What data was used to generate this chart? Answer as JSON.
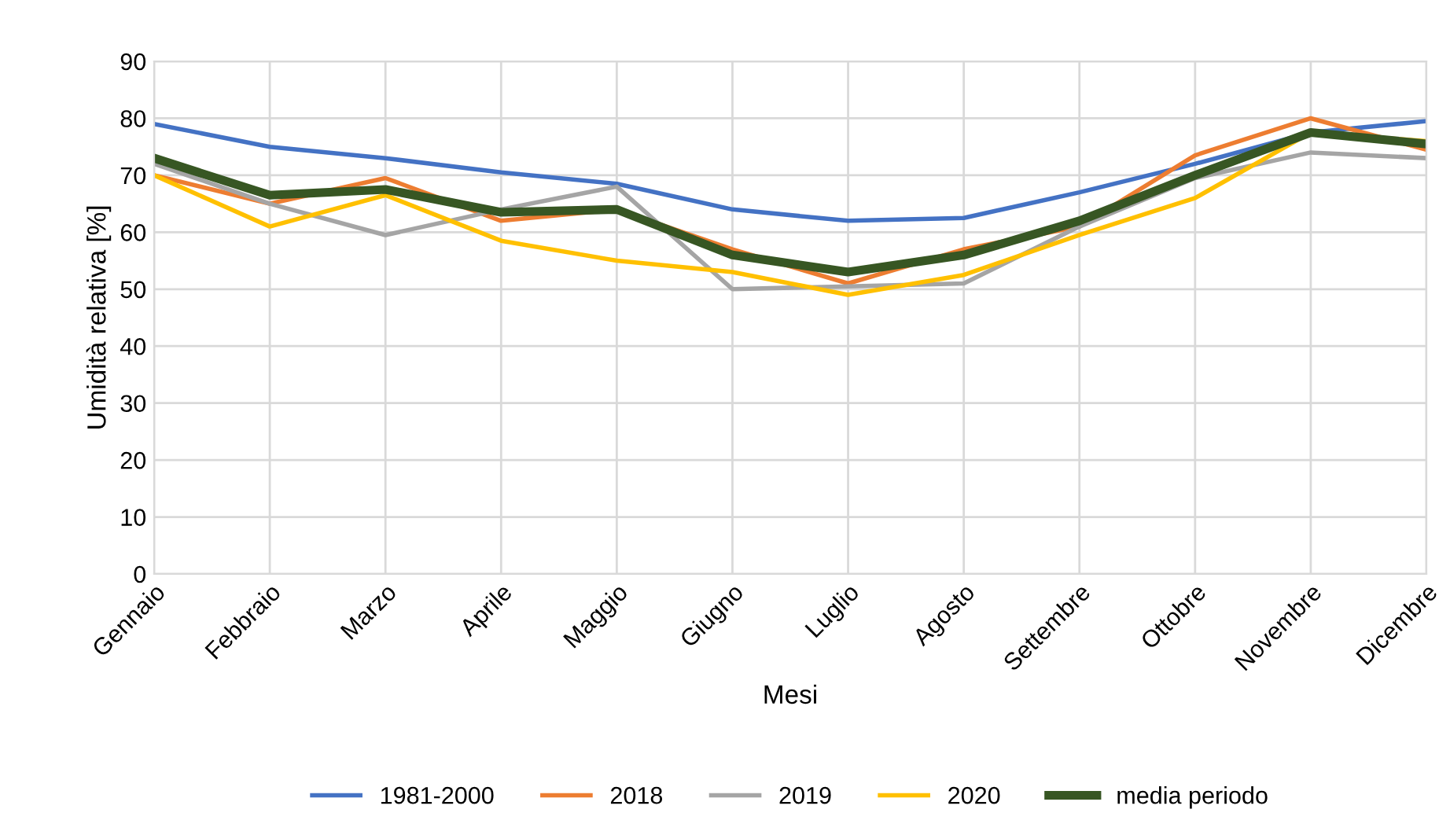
{
  "chart_data": {
    "type": "line",
    "xlabel": "Mesi",
    "ylabel": "Umidità relativa [%]",
    "categories": [
      "Gennaio",
      "Febbraio",
      "Marzo",
      "Aprile",
      "Maggio",
      "Giugno",
      "Luglio",
      "Agosto",
      "Settembre",
      "Ottobre",
      "Novembre",
      "Dicembre"
    ],
    "series": [
      {
        "name": "1981-2000",
        "color": "#4472c4",
        "values": [
          79,
          75,
          73,
          70.5,
          68.5,
          64,
          62,
          62.5,
          67,
          72,
          77.5,
          79.5
        ]
      },
      {
        "name": "2018",
        "color": "#ed7d31",
        "values": [
          70,
          65,
          69.5,
          62,
          64,
          57,
          51,
          57,
          61,
          73.5,
          80,
          74.5
        ]
      },
      {
        "name": "2019",
        "color": "#a5a5a5",
        "values": [
          72,
          65,
          59.5,
          64,
          68,
          50,
          50.5,
          51,
          61,
          69.5,
          74,
          73
        ]
      },
      {
        "name": "2020",
        "color": "#ffc000",
        "values": [
          70,
          61,
          66.5,
          58.5,
          55,
          53,
          49,
          52.5,
          59.5,
          66,
          77.5,
          76
        ]
      },
      {
        "name": "media periodo",
        "color": "#375623",
        "values": [
          73,
          66.5,
          67.5,
          63.5,
          64,
          56,
          53,
          56,
          62,
          70,
          77.5,
          75.5
        ]
      }
    ],
    "ylim": [
      0,
      90
    ],
    "yticks": [
      0,
      10,
      20,
      30,
      40,
      50,
      60,
      70,
      80,
      90
    ],
    "grid": true,
    "legend": "bottom",
    "marker": "none",
    "line_style": "solid"
  }
}
